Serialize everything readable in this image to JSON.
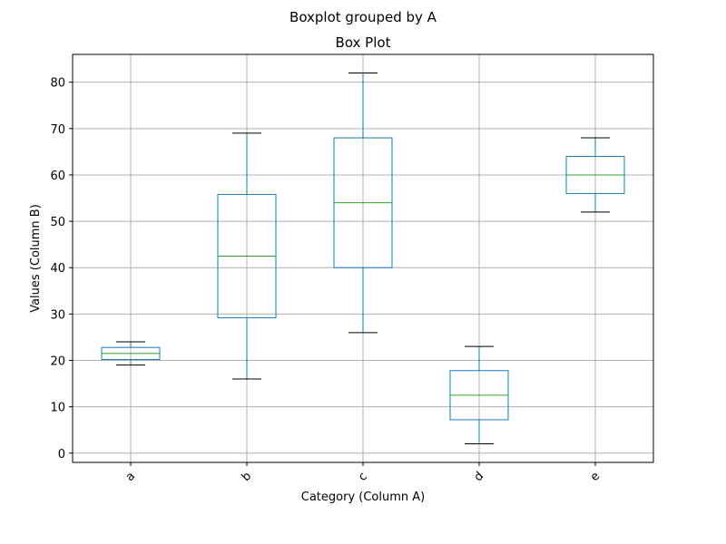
{
  "figure": {
    "suptitle": "Boxplot grouped by A"
  },
  "chart_data": {
    "type": "box",
    "title": "Box Plot",
    "xlabel": "Category (Column A)",
    "ylabel": "Values (Column B)",
    "ylim": [
      -2,
      86
    ],
    "yticks": [
      0,
      10,
      20,
      30,
      40,
      50,
      60,
      70,
      80
    ],
    "grid": true,
    "categories": [
      "a",
      "b",
      "c",
      "d",
      "e"
    ],
    "boxes": [
      {
        "category": "a",
        "whisker_low": 19,
        "q1": 20.2,
        "median": 21.5,
        "q3": 22.8,
        "whisker_high": 24
      },
      {
        "category": "b",
        "whisker_low": 16,
        "q1": 29.2,
        "median": 42.5,
        "q3": 55.8,
        "whisker_high": 69
      },
      {
        "category": "c",
        "whisker_low": 26,
        "q1": 40,
        "median": 54,
        "q3": 68,
        "whisker_high": 82
      },
      {
        "category": "d",
        "whisker_low": 2,
        "q1": 7.2,
        "median": 12.5,
        "q3": 17.8,
        "whisker_high": 23
      },
      {
        "category": "e",
        "whisker_low": 52,
        "q1": 56,
        "median": 60,
        "q3": 64,
        "whisker_high": 68
      }
    ],
    "colors": {
      "box": "#1f77b4",
      "median": "#2ca02c",
      "cap": "#000000",
      "grid": "#b0b0b0",
      "axes": "#000000"
    }
  }
}
